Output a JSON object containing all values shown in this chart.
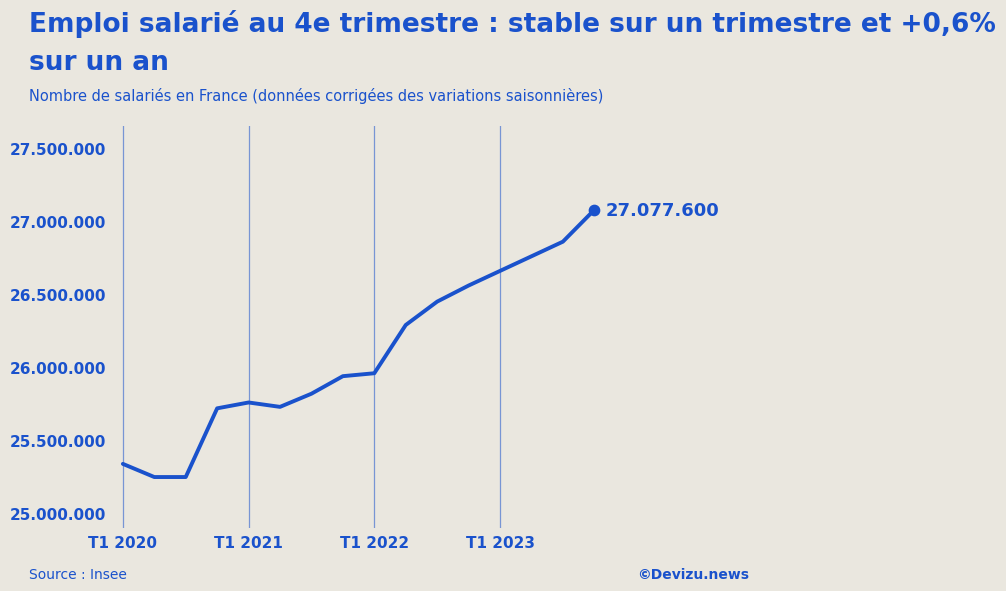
{
  "title_line1": "Emploi salarié au 4e trimestre : stable sur un trimestre et +0,6%",
  "title_line2": "sur un an",
  "subtitle": "Nombre de salariés en France (données corrigées des variations saisonnières)",
  "source": "Source : Insee",
  "copyright": "©Devizu.news",
  "background_color": "#EAE7DF",
  "line_color": "#1A52CC",
  "title_color": "#1A52CC",
  "annotation_label": "27.077.600",
  "ylim_low": 24900000,
  "ylim_high": 27650000,
  "yticks": [
    25000000,
    25500000,
    26000000,
    26500000,
    27000000,
    27500000
  ],
  "ytick_labels": [
    "25.000.000",
    "25.500.000",
    "26.000.000",
    "26.500.000",
    "27.000.000",
    "27.500.000"
  ],
  "vline_x": [
    0,
    4,
    8,
    12
  ],
  "vline_labels": [
    "T1 2020",
    "T1 2021",
    "T1 2022",
    "T1 2023"
  ],
  "x_vals": [
    0,
    1,
    2,
    3,
    4,
    5,
    6,
    7,
    8,
    9,
    10,
    11,
    12,
    13,
    14,
    15
  ],
  "y_vals": [
    25340000,
    25250000,
    25250000,
    25720000,
    25760000,
    25730000,
    25820000,
    25940000,
    25960000,
    26290000,
    26450000,
    26560000,
    26660000,
    26760000,
    26860000,
    27077600
  ],
  "title_fontsize": 19,
  "subtitle_fontsize": 10.5,
  "tick_fontsize": 11,
  "annot_fontsize": 13,
  "source_fontsize": 10
}
